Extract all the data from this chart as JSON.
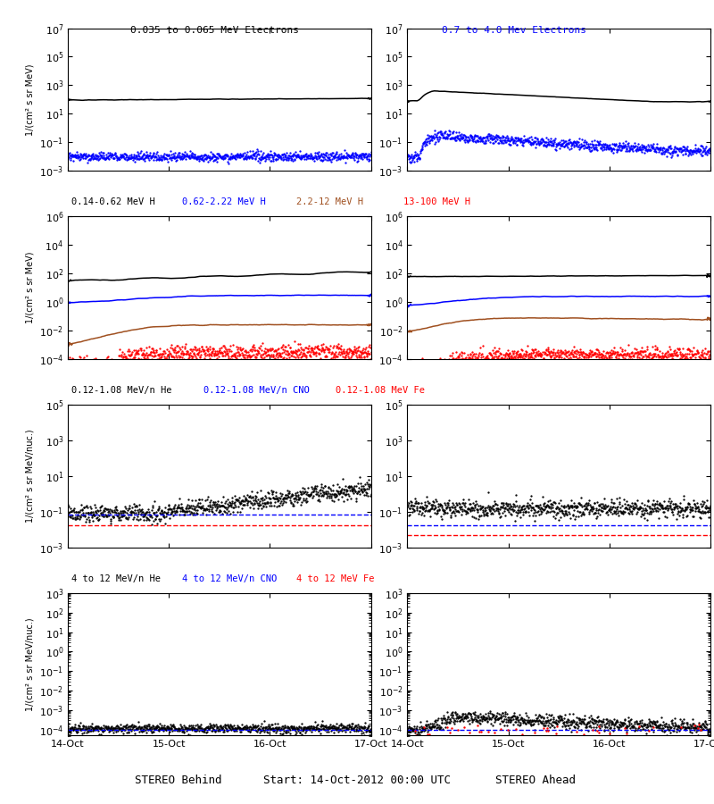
{
  "title_row1_left": "0.035 to 0.065 MeV Electrons",
  "title_row1_right": "0.7 to 4.0 Mev Electrons",
  "title_row2_1": "0.14-0.62 MeV H",
  "title_row2_2": "0.62-2.22 MeV H",
  "title_row2_3": "2.2-12 MeV H",
  "title_row2_4": "13-100 MeV H",
  "title_row3_1": "0.12-1.08 MeV/n He",
  "title_row3_2": "0.12-1.08 MeV/n CNO",
  "title_row3_3": "0.12-1.08 MeV Fe",
  "title_row4_1": "4 to 12 MeV/n He",
  "title_row4_2": "4 to 12 MeV/n CNO",
  "title_row4_3": "4 to 12 MeV Fe",
  "xlabel_left": "STEREO Behind",
  "xlabel_center": "Start: 14-Oct-2012 00:00 UTC",
  "xlabel_right": "STEREO Ahead",
  "ylabel_mev": "1/(cm² s sr MeV)",
  "ylabel_mevnuc": "1/(cm² s sr MeV/nuc.)",
  "bg_color": "#ffffff",
  "c_black": "#000000",
  "c_blue": "#0000ff",
  "c_brown": "#a05020",
  "c_red": "#ff0000",
  "row1_ylim": [
    0.001,
    10000000.0
  ],
  "row2_ylim": [
    0.0001,
    1000000.0
  ],
  "row3_ylim": [
    0.001,
    100000.0
  ],
  "row4_ylim": [
    5e-05,
    1000.0
  ],
  "n_points": 800,
  "xlim": [
    0,
    3
  ],
  "xtick_labels": [
    "14-Oct",
    "15-Oct",
    "16-Oct",
    "17-Oct"
  ]
}
